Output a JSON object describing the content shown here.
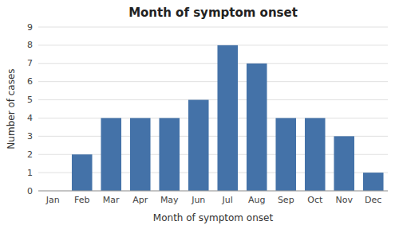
{
  "chart_data": {
    "type": "bar",
    "title": "Month of symptom onset",
    "xlabel": "Month of symptom onset",
    "ylabel": "Number of cases",
    "categories": [
      "Jan",
      "Feb",
      "Mar",
      "Apr",
      "May",
      "Jun",
      "Jul",
      "Aug",
      "Sep",
      "Oct",
      "Nov",
      "Dec"
    ],
    "values": [
      0,
      2,
      4,
      4,
      4,
      5,
      8,
      7,
      4,
      4,
      3,
      1
    ],
    "color": "#4472a8",
    "ylim": [
      0,
      9
    ],
    "yticks": [
      0,
      1,
      2,
      3,
      4,
      5,
      6,
      7,
      8,
      9
    ],
    "grid": true
  }
}
